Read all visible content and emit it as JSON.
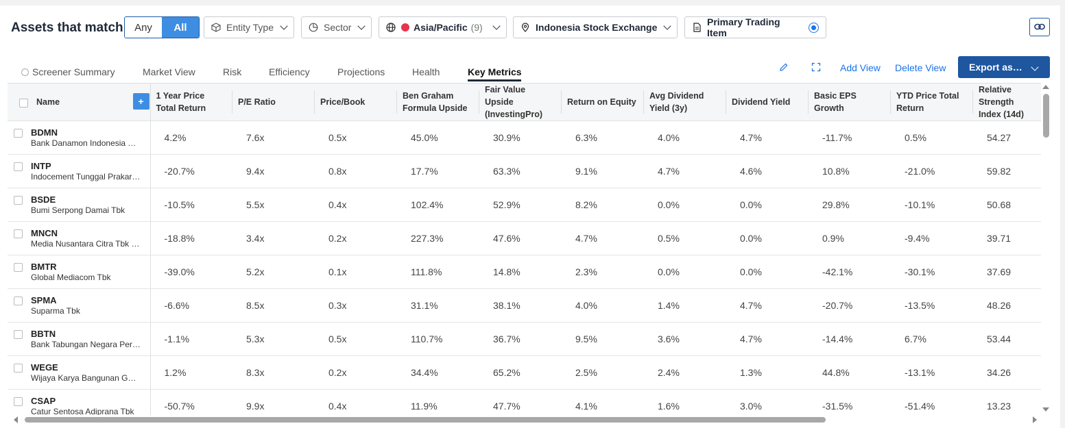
{
  "header": {
    "title": "Assets that match",
    "match_options": [
      "Any",
      "All"
    ],
    "match_selected": "All"
  },
  "filters": {
    "entity_type": "Entity Type",
    "sector": "Sector",
    "region": {
      "label": "Asia/Pacific",
      "count": "(9)"
    },
    "exchange": "Indonesia Stock Exchange",
    "trading_item": "Primary Trading Item"
  },
  "tabs": [
    "Screener Summary",
    "Market View",
    "Risk",
    "Efficiency",
    "Projections",
    "Health",
    "Key Metrics"
  ],
  "active_tab": "Key Metrics",
  "actions": {
    "add_view": "Add View",
    "delete_view": "Delete View",
    "export": "Export as…"
  },
  "table": {
    "name_header": "Name",
    "columns": [
      [
        "1 Year Price",
        "Total Return"
      ],
      [
        "P/E Ratio",
        ""
      ],
      [
        "Price/Book",
        ""
      ],
      [
        "Ben Graham",
        "Formula Upside"
      ],
      [
        "Fair Value Upside",
        "(InvestingPro)"
      ],
      [
        "Return on Equity",
        ""
      ],
      [
        "Avg Dividend",
        "Yield (3y)"
      ],
      [
        "Dividend Yield",
        ""
      ],
      [
        "Basic EPS",
        "Growth"
      ],
      [
        "YTD Price Total",
        "Return"
      ],
      [
        "Relative Strength",
        "Index (14d)"
      ]
    ],
    "rows": [
      {
        "ticker": "BDMN",
        "name": "Bank Danamon Indonesia Tbk",
        "values": [
          "4.2%",
          "7.6x",
          "0.5x",
          "45.0%",
          "30.9%",
          "6.3%",
          "4.0%",
          "4.7%",
          "-11.7%",
          "0.5%",
          "54.27"
        ]
      },
      {
        "ticker": "INTP",
        "name": "Indocement Tunggal Prakarsa Tbk",
        "values": [
          "-20.7%",
          "9.4x",
          "0.8x",
          "17.7%",
          "63.3%",
          "9.1%",
          "4.7%",
          "4.6%",
          "10.8%",
          "-21.0%",
          "59.82"
        ]
      },
      {
        "ticker": "BSDE",
        "name": "Bumi Serpong Damai Tbk",
        "values": [
          "-10.5%",
          "5.5x",
          "0.4x",
          "102.4%",
          "52.9%",
          "8.2%",
          "0.0%",
          "0.0%",
          "29.8%",
          "-10.1%",
          "50.68"
        ]
      },
      {
        "ticker": "MNCN",
        "name": "Media Nusantara Citra Tbk PT",
        "values": [
          "-18.8%",
          "3.4x",
          "0.2x",
          "227.3%",
          "47.6%",
          "4.7%",
          "0.5%",
          "0.0%",
          "0.9%",
          "-9.4%",
          "39.71"
        ]
      },
      {
        "ticker": "BMTR",
        "name": "Global Mediacom Tbk",
        "values": [
          "-39.0%",
          "5.2x",
          "0.1x",
          "111.8%",
          "14.8%",
          "2.3%",
          "0.0%",
          "0.0%",
          "-42.1%",
          "-30.1%",
          "37.69"
        ]
      },
      {
        "ticker": "SPMA",
        "name": "Suparma Tbk",
        "values": [
          "-6.6%",
          "8.5x",
          "0.3x",
          "31.1%",
          "38.1%",
          "4.0%",
          "1.4%",
          "4.7%",
          "-20.7%",
          "-13.5%",
          "48.26"
        ]
      },
      {
        "ticker": "BBTN",
        "name": "Bank Tabungan Negara Persero Tbk",
        "values": [
          "-1.1%",
          "5.3x",
          "0.5x",
          "110.7%",
          "36.7%",
          "9.5%",
          "3.6%",
          "4.7%",
          "-14.4%",
          "6.7%",
          "53.44"
        ]
      },
      {
        "ticker": "WEGE",
        "name": "Wijaya Karya Bangunan Gedung Tbk",
        "values": [
          "1.2%",
          "8.3x",
          "0.2x",
          "34.4%",
          "65.2%",
          "2.5%",
          "2.4%",
          "1.3%",
          "44.8%",
          "-13.1%",
          "34.26"
        ]
      },
      {
        "ticker": "CSAP",
        "name": "Catur Sentosa Adiprana Tbk",
        "values": [
          "-50.7%",
          "9.9x",
          "0.4x",
          "11.9%",
          "47.7%",
          "4.1%",
          "1.6%",
          "3.0%",
          "-31.5%",
          "-51.4%",
          "13.23"
        ]
      }
    ]
  },
  "colors": {
    "accent": "#3d8ee3",
    "export_bg": "#1e56a0",
    "link": "#1a73e8",
    "region_dot": "#e8344e"
  }
}
